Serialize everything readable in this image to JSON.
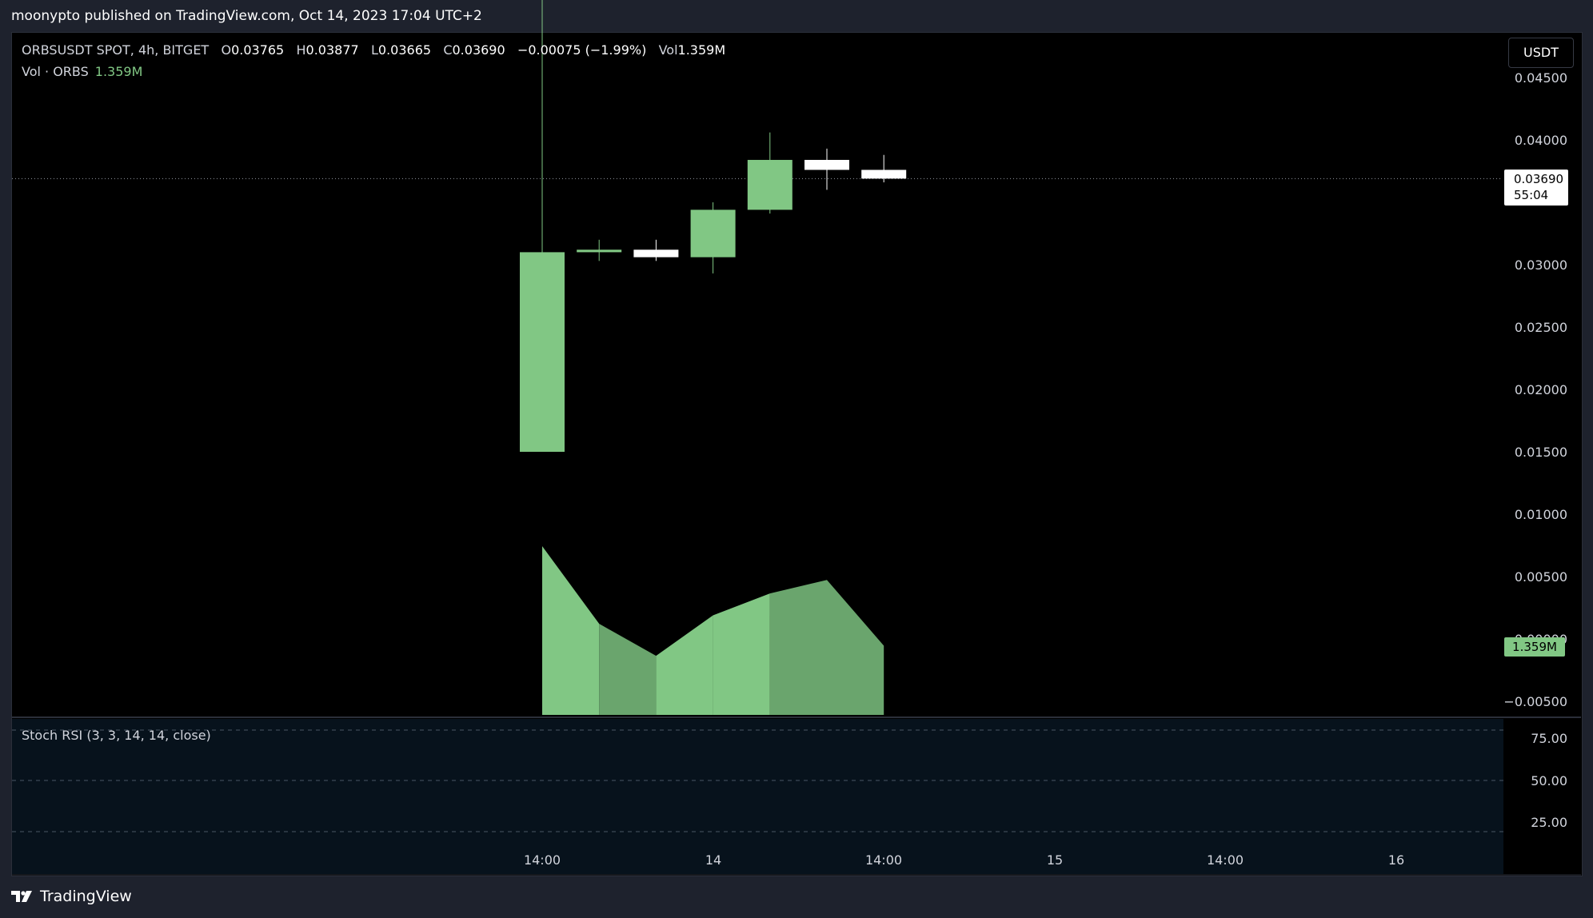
{
  "header": {
    "published": "moonypto published on TradingView.com, Oct 14, 2023 17:04 UTC+2"
  },
  "legend": {
    "symbol": "ORBSUSDT SPOT, 4h, BITGET",
    "o_label": "O",
    "o_value": "0.03765",
    "h_label": "H",
    "h_value": "0.03877",
    "l_label": "L",
    "l_value": "0.03665",
    "c_label": "C",
    "c_value": "0.03690",
    "change": "−0.00075 (−1.99%)",
    "vol_label": "Vol",
    "vol_value": "1.359M"
  },
  "volume_legend": {
    "label": "Vol · ORBS",
    "value": "1.359M"
  },
  "currency_button": "USDT",
  "last_price": {
    "price": "0.03690",
    "countdown": "55:04"
  },
  "volume_tag": "1.359M",
  "stoch_label": "Stoch RSI (3, 3, 14, 14, close)",
  "footer": {
    "brand": "TradingView",
    "logo_icon": "tradingview-logo-icon"
  },
  "colors": {
    "up": "#81c784",
    "down": "#ffffff",
    "vol_up": "#81c784",
    "vol_down": "#6aa56d",
    "background": "#000000"
  },
  "chart_data": [
    {
      "type": "candlestick",
      "symbol": "ORBSUSDT",
      "timeframe": "4h",
      "x_ticks": [
        "14:00",
        "14",
        "14:00",
        "15",
        "14:00",
        "16"
      ],
      "y_ticks": [
        "0.04500",
        "0.04000",
        "0.03000",
        "0.02500",
        "0.02000",
        "0.01500",
        "0.01000",
        "0.00500",
        "0.00000",
        "−0.00500"
      ],
      "ylim": [
        -0.005,
        0.045
      ],
      "candles": [
        {
          "open": 0.015,
          "high": 0.0515,
          "low": 0.015,
          "close": 0.031
        },
        {
          "open": 0.031,
          "high": 0.032,
          "low": 0.0303,
          "close": 0.0312
        },
        {
          "open": 0.0312,
          "high": 0.032,
          "low": 0.0303,
          "close": 0.0306
        },
        {
          "open": 0.0306,
          "high": 0.035,
          "low": 0.0293,
          "close": 0.0344
        },
        {
          "open": 0.0344,
          "high": 0.0406,
          "low": 0.0341,
          "close": 0.0384
        },
        {
          "open": 0.0384,
          "high": 0.0393,
          "low": 0.036,
          "close": 0.0376
        },
        {
          "open": 0.0376,
          "high": 0.0388,
          "low": 0.0366,
          "close": 0.0369
        }
      ],
      "last_price": 0.0369
    },
    {
      "type": "area",
      "name": "Vol · ORBS",
      "values": [
        1.0,
        0.54,
        0.35,
        0.59,
        0.72,
        0.8,
        0.41
      ],
      "last_value": "1.359M"
    },
    {
      "type": "line",
      "name": "Stoch RSI (3, 3, 14, 14, close)",
      "y_ticks": [
        "75.00",
        "50.00",
        "25.00"
      ],
      "bands": [
        80,
        50,
        20
      ],
      "series": []
    }
  ]
}
